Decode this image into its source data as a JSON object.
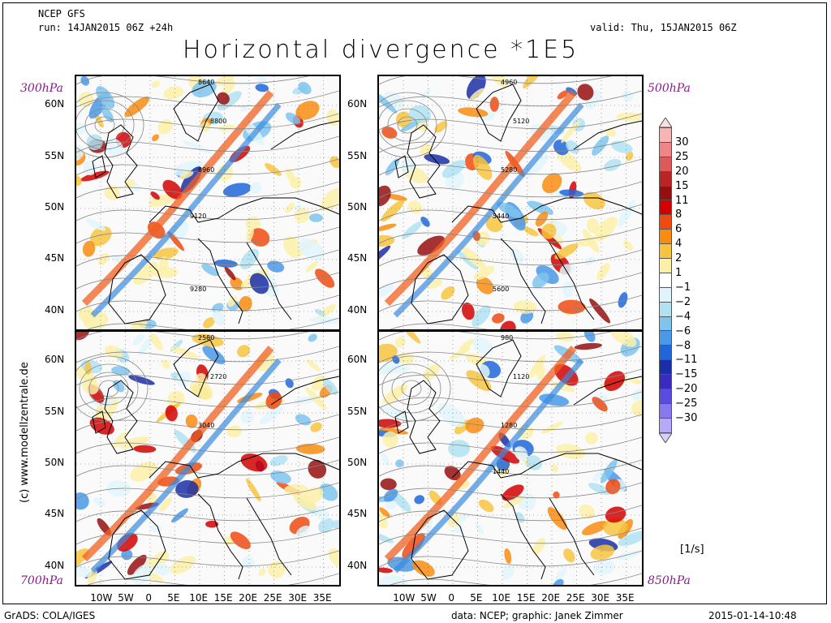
{
  "header": {
    "model": "NCEP GFS",
    "run": "run: 14JAN2015 06Z +24h",
    "valid": "valid: Thu, 15JAN2015 06Z",
    "title": "Horizontal divergence *1E5"
  },
  "panels": [
    {
      "level": "300hPa",
      "contours": [
        "8640",
        "8800",
        "8960",
        "9120",
        "9280"
      ]
    },
    {
      "level": "500hPa",
      "contours": [
        "4960",
        "5120",
        "5280",
        "5440",
        "5600"
      ]
    },
    {
      "level": "700hPa",
      "contours": [
        "2580",
        "2720",
        "3040"
      ]
    },
    {
      "level": "850hPa",
      "contours": [
        "980",
        "1120",
        "1280",
        "1440"
      ]
    }
  ],
  "lat_labels": [
    "60N",
    "55N",
    "50N",
    "45N",
    "40N"
  ],
  "lon_labels": [
    "10W",
    "5W",
    "0",
    "5E",
    "10E",
    "15E",
    "20E",
    "25E",
    "30E",
    "35E"
  ],
  "legend": {
    "unit": "[1/s]",
    "levels": [
      "30",
      "25",
      "20",
      "15",
      "11",
      "8",
      "6",
      "4",
      "2",
      "1",
      "-1",
      "-2",
      "-4",
      "-6",
      "-8",
      "-11",
      "-15",
      "-20",
      "-25",
      "-30"
    ],
    "colors": [
      "#f6b4b4",
      "#ee8686",
      "#dc5a5a",
      "#b92424",
      "#960f0f",
      "#d20000",
      "#f04a10",
      "#f88c10",
      "#f8c440",
      "#fcf0a8",
      "#ffffff",
      "#e0f4fb",
      "#b0e2f2",
      "#7ec4ee",
      "#4a98e8",
      "#2066d8",
      "#1a2ea6",
      "#3a2ac0",
      "#5a4ce0",
      "#8878f0",
      "#b8a8f8"
    ]
  },
  "credit_vertical": "(c) www.modellzentrale.de",
  "footer": {
    "left": "GrADS: COLA/IGES",
    "center": "data: NCEP; graphic: Janek Zimmer",
    "right": "2015-01-14-10:48"
  }
}
